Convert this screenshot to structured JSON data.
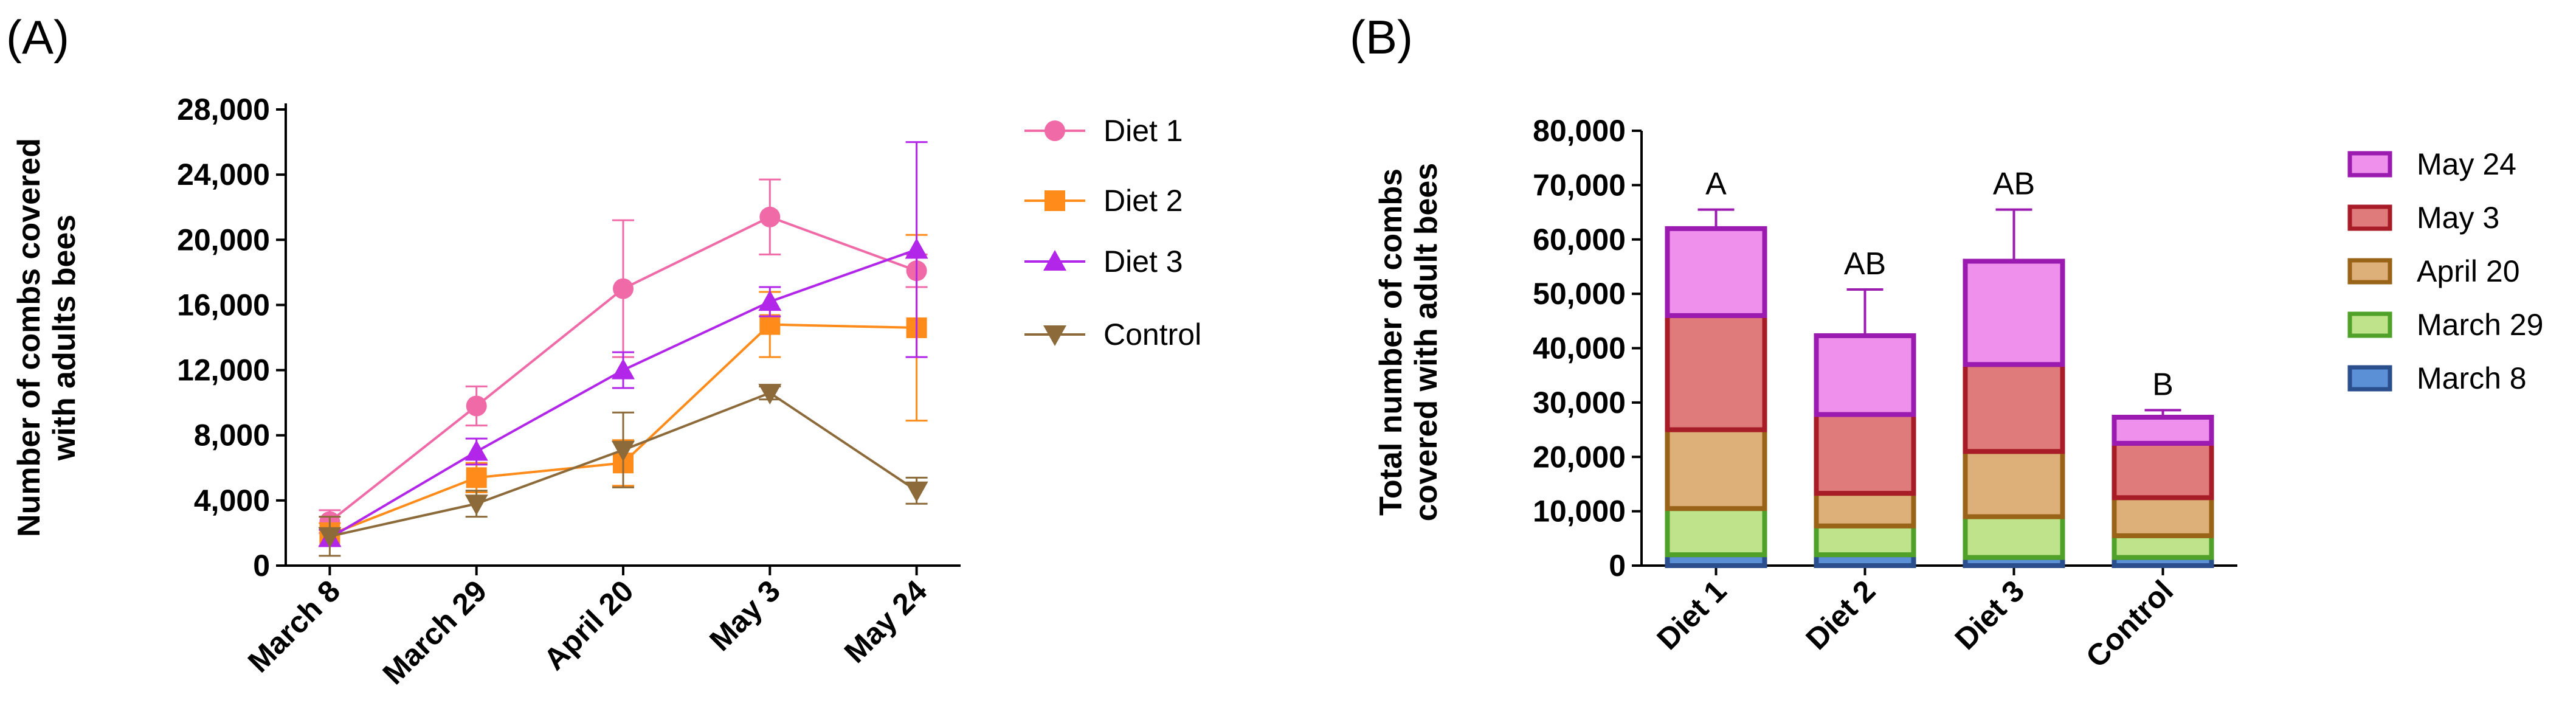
{
  "chart_data": [
    {
      "type": "line",
      "panel_label": "(A)",
      "ylabel": "Number of combs covered with adults bees",
      "ylim": [
        0,
        28000
      ],
      "yticks": [
        0,
        4000,
        8000,
        12000,
        16000,
        20000,
        24000,
        28000
      ],
      "ytick_labels": [
        "0",
        "4,000",
        "8,000",
        "12,000",
        "16,000",
        "20,000",
        "24,000",
        "28,000"
      ],
      "categories": [
        "March 8",
        "March 29",
        "April 20",
        "May 3",
        "May 24"
      ],
      "series": [
        {
          "name": "Diet 1",
          "color": "#f06aa8",
          "marker": "circle",
          "values": [
            2700,
            9800,
            17000,
            21400,
            18100
          ],
          "errors": [
            700,
            1200,
            4200,
            2300,
            1000
          ]
        },
        {
          "name": "Diet 2",
          "color": "#ff8c1a",
          "marker": "square",
          "values": [
            1900,
            5400,
            6300,
            14800,
            14600
          ],
          "errors": [
            700,
            900,
            1400,
            2000,
            5700
          ]
        },
        {
          "name": "Diet 3",
          "color": "#b126e8",
          "marker": "triangle-up",
          "values": [
            1700,
            7000,
            12000,
            16200,
            19400
          ],
          "errors": [
            500,
            800,
            1100,
            900,
            6600
          ]
        },
        {
          "name": "Control",
          "color": "#8c6a3a",
          "marker": "triangle-down",
          "values": [
            1800,
            3800,
            7100,
            10600,
            4600
          ],
          "errors": [
            1200,
            800,
            2300,
            400,
            800
          ]
        }
      ]
    },
    {
      "type": "bar",
      "stacked": true,
      "panel_label": "(B)",
      "ylabel": "Total number of combs covered with adult bees",
      "ylim": [
        0,
        80000
      ],
      "yticks": [
        0,
        10000,
        20000,
        30000,
        40000,
        50000,
        60000,
        70000,
        80000
      ],
      "ytick_labels": [
        "0",
        "10,000",
        "20,000",
        "30,000",
        "40,000",
        "50,000",
        "60,000",
        "70,000",
        "80,000"
      ],
      "categories": [
        "Diet 1",
        "Diet 2",
        "Diet 3",
        "Control"
      ],
      "significance": [
        "A",
        "AB",
        "AB",
        "B"
      ],
      "series": [
        {
          "name": "March 8",
          "fill": "#5b8fd6",
          "edge": "#2a4f8c",
          "values": [
            2000,
            2000,
            1500,
            1500
          ],
          "errors": [
            1500,
            1000,
            500,
            1500
          ]
        },
        {
          "name": "March 29",
          "fill": "#bfe38a",
          "edge": "#4fa12a",
          "values": [
            8500,
            5300,
            7500,
            4000
          ],
          "errors": [
            2500,
            1500,
            1000,
            1000
          ]
        },
        {
          "name": "April 20",
          "fill": "#ddb07a",
          "edge": "#9a6418",
          "values": [
            14500,
            6000,
            12000,
            7000
          ],
          "errors": [
            5500,
            2700,
            1500,
            2000
          ]
        },
        {
          "name": "May 3",
          "fill": "#e07b7b",
          "edge": "#a81c28",
          "values": [
            21000,
            14500,
            16000,
            10000
          ],
          "errors": [
            2500,
            3700,
            1500,
            800
          ]
        },
        {
          "name": "May 24",
          "fill": "#ee90ec",
          "edge": "#9b1bb0",
          "values": [
            16000,
            14500,
            19000,
            4800
          ],
          "errors": [
            3500,
            8500,
            9500,
            1300
          ]
        }
      ],
      "legend_order": [
        "May 24",
        "May 3",
        "April 20",
        "March 29",
        "March 8"
      ]
    }
  ]
}
